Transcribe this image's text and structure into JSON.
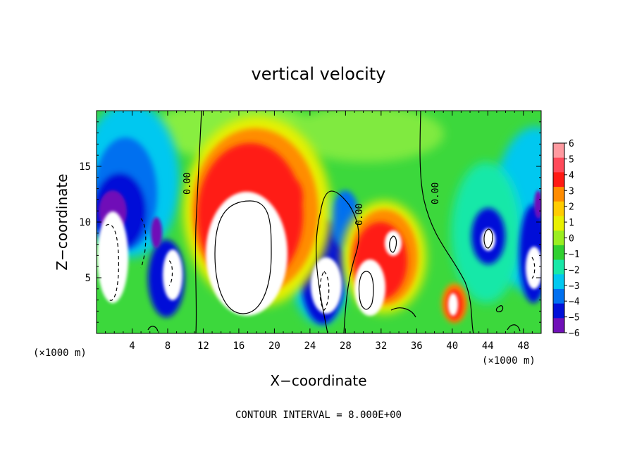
{
  "chart_data": {
    "type": "heatmap",
    "title": "vertical velocity",
    "xlabel": "X−coordinate",
    "ylabel": "Z−coordinate",
    "x_unit_left": "(×1000 m)",
    "x_unit_right": "(×1000 m)",
    "xlim": [
      0,
      50
    ],
    "ylim": [
      0,
      20
    ],
    "x_ticks": [
      "4",
      "8",
      "12",
      "16",
      "20",
      "24",
      "28",
      "32",
      "36",
      "40",
      "44",
      "48"
    ],
    "y_ticks": [
      "5",
      "10",
      "15"
    ],
    "colorbar": {
      "levels": [
        "6",
        "5",
        "4",
        "3",
        "2",
        "1",
        "0",
        "−1",
        "−2",
        "−3",
        "−4",
        "−5",
        "−6"
      ],
      "colors": [
        "#ff9aa0",
        "#ff4a5a",
        "#ff1a14",
        "#ff8c00",
        "#ffcc00",
        "#e8f000",
        "#9aee20",
        "#30d030",
        "#18e8a8",
        "#00c8f0",
        "#0070f0",
        "#0010d8",
        "#7010b8"
      ]
    },
    "contour_labels": [
      "0.00",
      "0.00",
      "0.00"
    ],
    "footer": "CONTOUR INTERVAL = 8.000E+00"
  }
}
